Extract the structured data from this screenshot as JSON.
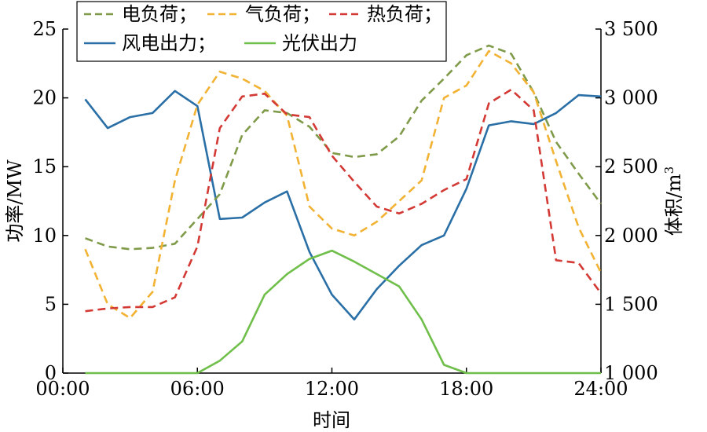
{
  "chart_data": {
    "type": "line",
    "x_categories": [
      "00:00",
      "06:00",
      "12:00",
      "18:00",
      "24:00"
    ],
    "x_range": [
      0,
      24
    ],
    "xlabel": "时间",
    "ylabel_left": "功率/MW",
    "ylabel_right": "体积/m",
    "ylabel_right_sup": "3",
    "ylim_left": [
      0,
      25
    ],
    "yticks_left": [
      "0",
      "5",
      "10",
      "15",
      "20",
      "25"
    ],
    "ylim_right": [
      1000,
      3500
    ],
    "yticks_right": [
      "1 000",
      "1 500",
      "2 000",
      "2 500",
      "3 000",
      "3 500"
    ],
    "x": [
      1,
      2,
      3,
      4,
      5,
      6,
      7,
      8,
      9,
      10,
      11,
      12,
      13,
      14,
      15,
      16,
      17,
      18,
      19,
      20,
      21,
      22,
      23,
      24
    ],
    "legend_position": "top-left",
    "series": [
      {
        "name": "电负荷；",
        "axis": "left",
        "style": "dashed",
        "color": "#7f9a48",
        "values": [
          9.8,
          9.2,
          9.0,
          9.1,
          9.4,
          11.2,
          13.0,
          17.3,
          19.1,
          18.9,
          17.9,
          16.0,
          15.7,
          15.9,
          17.2,
          19.8,
          21.4,
          23.1,
          23.8,
          23.2,
          20.4,
          16.8,
          14.5,
          12.3
        ]
      },
      {
        "name": "气负荷；",
        "axis": "right",
        "style": "dashed",
        "color": "#f2b233",
        "values": [
          1900,
          1500,
          1400,
          1590,
          2400,
          2950,
          3190,
          3140,
          3050,
          2870,
          2210,
          2050,
          2000,
          2100,
          2250,
          2400,
          3000,
          3090,
          3340,
          3250,
          3040,
          2540,
          2060,
          1730
        ]
      },
      {
        "name": "热负荷；",
        "axis": "left",
        "style": "dashed",
        "color": "#d33a35",
        "values": [
          4.5,
          4.7,
          4.8,
          4.8,
          5.5,
          9.2,
          17.8,
          20.1,
          20.3,
          18.8,
          18.6,
          15.8,
          13.9,
          12.1,
          11.6,
          12.3,
          13.3,
          14.1,
          19.6,
          20.6,
          19.1,
          8.2,
          8.0,
          5.8
        ]
      },
      {
        "name": "风电出力；",
        "axis": "left",
        "style": "solid",
        "color": "#2a6fa6",
        "values": [
          19.9,
          17.8,
          18.6,
          18.9,
          20.5,
          19.4,
          11.2,
          11.3,
          12.4,
          13.2,
          8.8,
          5.7,
          3.9,
          6.1,
          7.8,
          9.3,
          10.0,
          13.4,
          18.0,
          18.3,
          18.1,
          18.9,
          20.2,
          20.1
        ]
      },
      {
        "name": "光伏出力",
        "axis": "left",
        "style": "solid",
        "color": "#6fbf4a",
        "values": [
          0,
          0,
          0,
          0,
          0,
          0,
          0.9,
          2.3,
          5.7,
          7.2,
          8.3,
          8.9,
          8.1,
          7.2,
          6.3,
          3.9,
          0.6,
          0,
          0,
          0,
          0,
          0,
          0,
          0
        ]
      }
    ]
  }
}
